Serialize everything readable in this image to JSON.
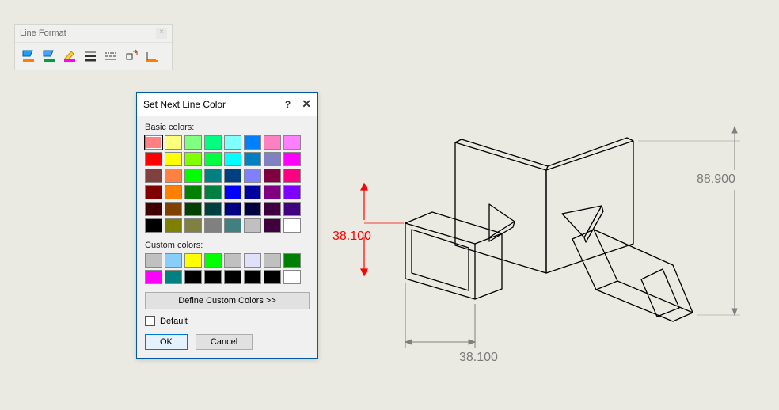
{
  "toolbar": {
    "title": "Line Format",
    "buttons": [
      {
        "name": "color-fill-icon"
      },
      {
        "name": "color-line-icon"
      },
      {
        "name": "highlight-icon"
      },
      {
        "name": "line-thickness-icon"
      },
      {
        "name": "line-style-icon"
      },
      {
        "name": "dimension-style-icon"
      },
      {
        "name": "angle-style-icon"
      }
    ]
  },
  "dialog": {
    "title": "Set Next Line Color",
    "help": "?",
    "close": "✕",
    "basic_label": "Basic colors:",
    "custom_label": "Custom colors:",
    "define_label": "Define Custom Colors >>",
    "default_label": "Default",
    "ok_label": "OK",
    "cancel_label": "Cancel",
    "basic_colors": [
      "#ff8080",
      "#ffff80",
      "#80ff80",
      "#00ff80",
      "#80ffff",
      "#0080ff",
      "#ff80c0",
      "#ff80ff",
      "#ff0000",
      "#ffff00",
      "#80ff00",
      "#00ff40",
      "#00ffff",
      "#0080c0",
      "#8080c0",
      "#ff00ff",
      "#804040",
      "#ff8040",
      "#00ff00",
      "#008080",
      "#004080",
      "#8080ff",
      "#800040",
      "#ff0080",
      "#800000",
      "#ff8000",
      "#008000",
      "#008040",
      "#0000ff",
      "#0000a0",
      "#800080",
      "#8000ff",
      "#400000",
      "#804000",
      "#004000",
      "#004040",
      "#000080",
      "#000040",
      "#400040",
      "#400080",
      "#000000",
      "#808000",
      "#808040",
      "#808080",
      "#408080",
      "#c0c0c0",
      "#400040",
      "#ffffff"
    ],
    "selected_index": 0,
    "custom_colors": [
      "#c0c0c0",
      "#87cefa",
      "#ffff00",
      "#00ff00",
      "#c0c0c0",
      "#e0e0f8",
      "#c0c0c0",
      "#008000",
      "#ff00ff",
      "#008080",
      "#000000",
      "#000000",
      "#000000",
      "#000000",
      "#000000",
      "#ffffff"
    ]
  },
  "drawing": {
    "dim_height": "38.100",
    "dim_width": "38.100",
    "dim_overall": "88.900",
    "colors": {
      "edge": "#000000",
      "dim": "#808080",
      "dim_active": "#ff0000",
      "bg": "#eaeae2"
    }
  }
}
